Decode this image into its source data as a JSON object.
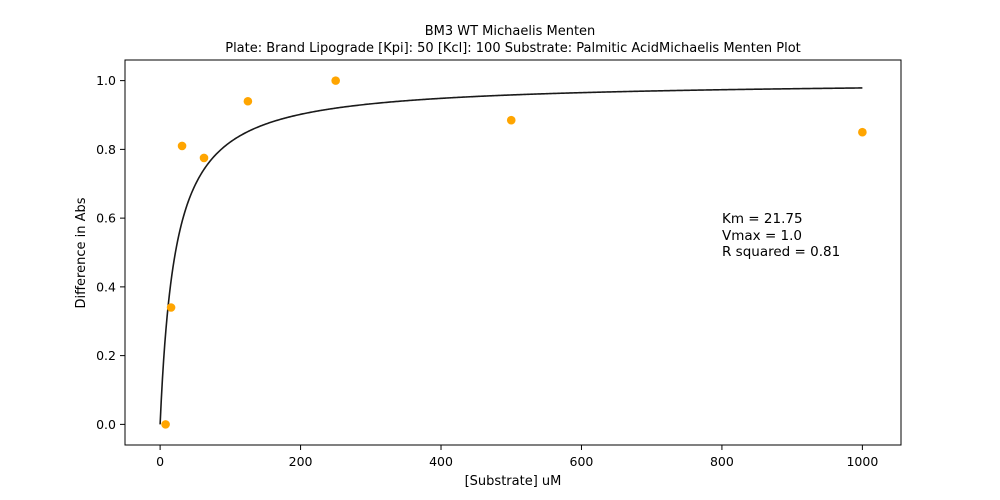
{
  "chart_data": {
    "type": "scatter",
    "title": "BM3 WT Michaelis Menten",
    "subtitle": "Plate: Brand Lipograde  [Kpi]: 50  [Kcl]: 100  Substrate: Palmitic AcidMichaelis Menten Plot",
    "xlabel": "[Substrate] uM",
    "ylabel": "Difference in Abs",
    "xlim": [
      -50,
      1055
    ],
    "ylim": [
      -0.06,
      1.06
    ],
    "xticks": [
      0,
      200,
      400,
      600,
      800,
      1000
    ],
    "yticks": [
      0.0,
      0.2,
      0.4,
      0.6,
      0.8,
      1.0
    ],
    "xtick_labels": [
      "0",
      "200",
      "400",
      "600",
      "800",
      "1000"
    ],
    "ytick_labels": [
      "0.0",
      "0.2",
      "0.4",
      "0.6",
      "0.8",
      "1.0"
    ],
    "grid": false,
    "series": [
      {
        "kind": "points",
        "color": "#FFA500",
        "x": [
          7.8,
          15.6,
          31.25,
          62.5,
          125,
          250,
          500,
          1000
        ],
        "y": [
          0.0,
          0.34,
          0.81,
          0.775,
          0.94,
          1.0,
          0.885,
          0.85
        ]
      },
      {
        "kind": "fit-curve",
        "color": "#1a1a1a",
        "model": "michaelis-menten",
        "vmax": 1.0,
        "km": 21.75,
        "x_range": [
          0,
          1000
        ]
      }
    ],
    "annotations": {
      "km_text": "Km = 21.75",
      "vmax_text": "Vmax = 1.0",
      "r2_text": "R squared = 0.81"
    }
  }
}
